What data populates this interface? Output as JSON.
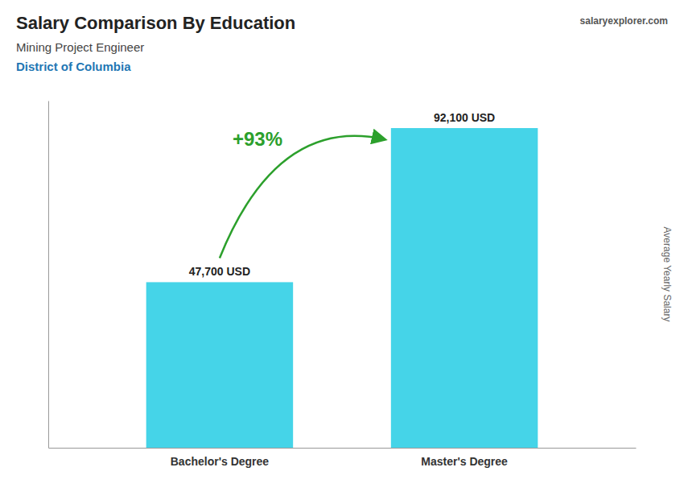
{
  "chart_data": {
    "type": "bar",
    "title": "Salary Comparison By Education",
    "subtitle": "Mining Project Engineer",
    "annotations": [
      "District of Columbia",
      "salaryexplorer.com",
      "+93%"
    ],
    "ylabel": "Average Yearly Salary",
    "categories": [
      "Bachelor's Degree",
      "Master's Degree"
    ],
    "values": [
      47700,
      92100
    ],
    "value_labels": [
      "47,700 USD",
      "92,100 USD"
    ],
    "data_labels": true,
    "color": "#45D4E8",
    "ylim": [
      0,
      100000
    ],
    "tick_labels": "x"
  }
}
